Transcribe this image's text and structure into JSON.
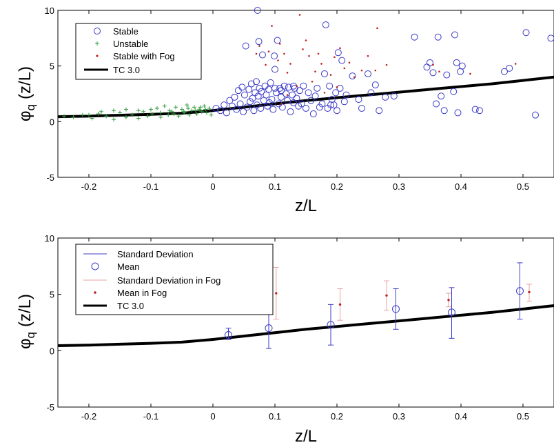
{
  "chart_data": [
    {
      "type": "scatter",
      "xlabel": "z/L",
      "ylabel": "φq (z/L)",
      "ylabel_main": "φ",
      "ylabel_sub": "q",
      "ylabel_rest": "(z/L)",
      "xlim": [
        -0.25,
        0.55
      ],
      "ylim": [
        -5,
        10
      ],
      "xticks": [
        -0.2,
        -0.1,
        0,
        0.1,
        0.2,
        0.3,
        0.4,
        0.5
      ],
      "xtick_labels": [
        "-0.2",
        "-0.1",
        "0",
        "0.1",
        "0.2",
        "0.3",
        "0.4",
        "0.5"
      ],
      "yticks": [
        -5,
        0,
        5,
        10
      ],
      "ytick_labels": [
        "-5",
        "0",
        "5",
        "10"
      ],
      "grid": false,
      "legend_position": "top-left",
      "legend": [
        {
          "label": "Stable",
          "marker": "circle",
          "color": "#3a3ac8"
        },
        {
          "label": "Unstable",
          "marker": "plus",
          "color": "#2e9a3a"
        },
        {
          "label": "Stable with Fog",
          "marker": "dot",
          "color": "#c02020"
        },
        {
          "label": "TC 3.0",
          "marker": "line",
          "color": "#000000"
        }
      ],
      "series": [
        {
          "name": "Stable",
          "marker": "circle",
          "color": "#3a3ac8",
          "points": [
            [
              0.005,
              1.2
            ],
            [
              0.012,
              1.0
            ],
            [
              0.018,
              1.5
            ],
            [
              0.022,
              0.8
            ],
            [
              0.027,
              1.9
            ],
            [
              0.031,
              1.4
            ],
            [
              0.035,
              2.2
            ],
            [
              0.038,
              1.1
            ],
            [
              0.041,
              2.8
            ],
            [
              0.044,
              1.6
            ],
            [
              0.047,
              3.1
            ],
            [
              0.049,
              0.9
            ],
            [
              0.051,
              2.4
            ],
            [
              0.053,
              6.8
            ],
            [
              0.055,
              1.3
            ],
            [
              0.058,
              2.9
            ],
            [
              0.06,
              1.8
            ],
            [
              0.062,
              3.4
            ],
            [
              0.064,
              2.1
            ],
            [
              0.066,
              1.0
            ],
            [
              0.068,
              2.6
            ],
            [
              0.07,
              3.6
            ],
            [
              0.071,
              1.5
            ],
            [
              0.072,
              10.0
            ],
            [
              0.073,
              2.3
            ],
            [
              0.074,
              7.2
            ],
            [
              0.075,
              3.0
            ],
            [
              0.077,
              1.2
            ],
            [
              0.078,
              2.7
            ],
            [
              0.08,
              6.0
            ],
            [
              0.082,
              1.9
            ],
            [
              0.084,
              3.2
            ],
            [
              0.086,
              2.4
            ],
            [
              0.088,
              1.4
            ],
            [
              0.09,
              2.9
            ],
            [
              0.091,
              1.7
            ],
            [
              0.093,
              3.5
            ],
            [
              0.095,
              2.0
            ],
            [
              0.097,
              1.1
            ],
            [
              0.099,
              5.9
            ],
            [
              0.1,
              4.7
            ],
            [
              0.102,
              2.6
            ],
            [
              0.104,
              7.3
            ],
            [
              0.106,
              1.6
            ],
            [
              0.108,
              3.0
            ],
            [
              0.11,
              2.2
            ],
            [
              0.112,
              1.3
            ],
            [
              0.115,
              3.2
            ],
            [
              0.118,
              2.5
            ],
            [
              0.12,
              1.9
            ],
            [
              0.122,
              3.1
            ],
            [
              0.125,
              0.9
            ],
            [
              0.128,
              2.4
            ],
            [
              0.13,
              1.7
            ],
            [
              0.132,
              3.0
            ],
            [
              0.135,
              2.1
            ],
            [
              0.138,
              1.4
            ],
            [
              0.14,
              2.8
            ],
            [
              0.143,
              1.6
            ],
            [
              0.146,
              3.2
            ],
            [
              0.15,
              1.2
            ],
            [
              0.154,
              2.6
            ],
            [
              0.158,
              1.9
            ],
            [
              0.162,
              0.7
            ],
            [
              0.165,
              2.3
            ],
            [
              0.168,
              3.0
            ],
            [
              0.172,
              1.3
            ],
            [
              0.176,
              1.6
            ],
            [
              0.18,
              4.3
            ],
            [
              0.182,
              8.7
            ],
            [
              0.185,
              1.2
            ],
            [
              0.188,
              3.2
            ],
            [
              0.192,
              2.0
            ],
            [
              0.195,
              1.5
            ],
            [
              0.198,
              2.6
            ],
            [
              0.202,
              6.2
            ],
            [
              0.205,
              3.0
            ],
            [
              0.208,
              5.5
            ],
            [
              0.212,
              1.8
            ],
            [
              0.215,
              2.4
            ],
            [
              0.225,
              4.1
            ],
            [
              0.235,
              2.0
            ],
            [
              0.24,
              1.2
            ],
            [
              0.25,
              4.3
            ],
            [
              0.255,
              2.6
            ],
            [
              0.262,
              3.3
            ],
            [
              0.268,
              1.0
            ],
            [
              0.278,
              2.2
            ],
            [
              0.292,
              2.3
            ],
            [
              0.325,
              7.6
            ],
            [
              0.345,
              4.9
            ],
            [
              0.35,
              5.3
            ],
            [
              0.355,
              4.4
            ],
            [
              0.36,
              1.6
            ],
            [
              0.363,
              7.6
            ],
            [
              0.368,
              2.3
            ],
            [
              0.373,
              1.0
            ],
            [
              0.377,
              4.2
            ],
            [
              0.388,
              2.7
            ],
            [
              0.39,
              7.8
            ],
            [
              0.393,
              5.3
            ],
            [
              0.395,
              0.8
            ],
            [
              0.399,
              4.5
            ],
            [
              0.402,
              5.0
            ],
            [
              0.423,
              1.1
            ],
            [
              0.43,
              1.0
            ],
            [
              0.47,
              4.5
            ],
            [
              0.478,
              4.8
            ],
            [
              0.505,
              8.0
            ],
            [
              0.52,
              0.6
            ],
            [
              0.545,
              7.5
            ],
            [
              0.1,
              3.0
            ],
            [
              0.11,
              2.8
            ],
            [
              0.13,
              3.2
            ],
            [
              0.2,
              1.0
            ],
            [
              0.19,
              1.5
            ]
          ]
        },
        {
          "name": "Unstable",
          "marker": "plus",
          "color": "#2e9a3a",
          "points": [
            [
              -0.24,
              0.5
            ],
            [
              -0.225,
              0.4
            ],
            [
              -0.21,
              0.6
            ],
            [
              -0.195,
              0.3
            ],
            [
              -0.185,
              0.7
            ],
            [
              -0.172,
              0.5
            ],
            [
              -0.16,
              0.2
            ],
            [
              -0.15,
              0.8
            ],
            [
              -0.14,
              0.4
            ],
            [
              -0.13,
              0.6
            ],
            [
              -0.12,
              0.3
            ],
            [
              -0.112,
              0.9
            ],
            [
              -0.105,
              0.5
            ],
            [
              -0.098,
              0.7
            ],
            [
              -0.09,
              1.2
            ],
            [
              -0.084,
              0.4
            ],
            [
              -0.078,
              1.4
            ],
            [
              -0.072,
              0.6
            ],
            [
              -0.066,
              0.9
            ],
            [
              -0.06,
              1.3
            ],
            [
              -0.055,
              0.5
            ],
            [
              -0.05,
              1.1
            ],
            [
              -0.046,
              0.8
            ],
            [
              -0.042,
              1.5
            ],
            [
              -0.038,
              0.6
            ],
            [
              -0.034,
              1.0
            ],
            [
              -0.03,
              1.3
            ],
            [
              -0.026,
              0.7
            ],
            [
              -0.022,
              1.1
            ],
            [
              -0.018,
              0.9
            ],
            [
              -0.014,
              1.4
            ],
            [
              -0.01,
              0.8
            ],
            [
              -0.006,
              1.2
            ],
            [
              -0.003,
              0.6
            ],
            [
              -0.14,
              1.1
            ],
            [
              -0.16,
              1.0
            ],
            [
              -0.18,
              0.9
            ],
            [
              -0.12,
              1.0
            ],
            [
              -0.1,
              1.1
            ],
            [
              -0.07,
              1.0
            ],
            [
              -0.04,
              1.2
            ],
            [
              -0.02,
              1.3
            ],
            [
              -0.085,
              0.8
            ],
            [
              -0.063,
              0.7
            ],
            [
              -0.047,
              0.9
            ],
            [
              -0.028,
              1.0
            ],
            [
              -0.012,
              1.1
            ],
            [
              -0.2,
              0.6
            ]
          ]
        },
        {
          "name": "Stable with Fog",
          "marker": "dot",
          "color": "#c02020",
          "points": [
            [
              0.07,
              6.1
            ],
            [
              0.075,
              6.8
            ],
            [
              0.085,
              5.1
            ],
            [
              0.09,
              6.3
            ],
            [
              0.095,
              8.6
            ],
            [
              0.105,
              5.5
            ],
            [
              0.108,
              7.0
            ],
            [
              0.115,
              6.1
            ],
            [
              0.12,
              4.4
            ],
            [
              0.125,
              5.2
            ],
            [
              0.135,
              3.2
            ],
            [
              0.14,
              9.6
            ],
            [
              0.145,
              6.5
            ],
            [
              0.15,
              7.3
            ],
            [
              0.155,
              5.9
            ],
            [
              0.16,
              3.6
            ],
            [
              0.165,
              4.5
            ],
            [
              0.17,
              6.1
            ],
            [
              0.175,
              5.2
            ],
            [
              0.18,
              2.6
            ],
            [
              0.19,
              4.2
            ],
            [
              0.196,
              5.8
            ],
            [
              0.2,
              3.1
            ],
            [
              0.205,
              6.6
            ],
            [
              0.212,
              4.8
            ],
            [
              0.22,
              5.3
            ],
            [
              0.228,
              4.0
            ],
            [
              0.24,
              4.6
            ],
            [
              0.25,
              5.9
            ],
            [
              0.262,
              4.6
            ],
            [
              0.265,
              8.4
            ],
            [
              0.28,
              5.1
            ],
            [
              0.355,
              5.1
            ],
            [
              0.365,
              4.5
            ],
            [
              0.415,
              4.3
            ],
            [
              0.488,
              5.2
            ],
            [
              0.12,
              2.4
            ],
            [
              0.11,
              1.6
            ]
          ]
        }
      ],
      "fit_line": {
        "name": "TC 3.0",
        "x": [
          -0.25,
          -0.2,
          -0.15,
          -0.1,
          -0.05,
          0,
          0.05,
          0.1,
          0.15,
          0.2,
          0.25,
          0.3,
          0.35,
          0.4,
          0.45,
          0.5,
          0.55
        ],
        "y": [
          0.45,
          0.5,
          0.58,
          0.66,
          0.76,
          1.0,
          1.3,
          1.6,
          1.9,
          2.15,
          2.4,
          2.65,
          2.9,
          3.15,
          3.4,
          3.7,
          4.0
        ]
      }
    },
    {
      "type": "scatter",
      "xlabel": "z/L",
      "ylabel": "φq (z/L)",
      "ylabel_main": "φ",
      "ylabel_sub": "q",
      "ylabel_rest": "(z/L)",
      "xlim": [
        -0.25,
        0.55
      ],
      "ylim": [
        -5,
        10
      ],
      "xticks": [
        -0.2,
        -0.1,
        0,
        0.1,
        0.2,
        0.3,
        0.4,
        0.5
      ],
      "xtick_labels": [
        "-0.2",
        "-0.1",
        "0",
        "0.1",
        "0.2",
        "0.3",
        "0.4",
        "0.5"
      ],
      "yticks": [
        -5,
        0,
        5,
        10
      ],
      "ytick_labels": [
        "-5",
        "0",
        "5",
        "10"
      ],
      "grid": false,
      "legend_position": "top-left",
      "legend": [
        {
          "label": "Standard Deviation",
          "marker": "line",
          "color": "#3a3ac8"
        },
        {
          "label": "Mean",
          "marker": "circle",
          "color": "#3a3ac8"
        },
        {
          "label": "Standard Deviation in Fog",
          "marker": "line",
          "color": "#e8a0a0"
        },
        {
          "label": "Mean in Fog",
          "marker": "dot",
          "color": "#c02020"
        },
        {
          "label": "TC 3.0",
          "marker": "line",
          "color": "#000000"
        }
      ],
      "series": [
        {
          "name": "Mean",
          "color": "#3a3ac8",
          "x": [
            0.025,
            0.09,
            0.19,
            0.295,
            0.385,
            0.495
          ],
          "y": [
            1.4,
            2.0,
            2.3,
            3.7,
            3.4,
            5.3
          ],
          "err_low": [
            1.0,
            0.2,
            0.5,
            1.9,
            1.1,
            2.8
          ],
          "err_high": [
            2.0,
            3.8,
            4.1,
            5.5,
            5.6,
            7.8
          ]
        },
        {
          "name": "Mean in Fog",
          "color": "#c02020",
          "x": [
            0.102,
            0.205,
            0.28,
            0.38,
            0.51
          ],
          "y": [
            5.1,
            4.1,
            4.9,
            4.5,
            5.2
          ],
          "err_low": [
            2.8,
            2.7,
            3.6,
            3.9,
            4.4
          ],
          "err_high": [
            7.4,
            5.5,
            6.2,
            5.1,
            5.9
          ]
        }
      ],
      "fit_line": {
        "name": "TC 3.0",
        "x": [
          -0.25,
          -0.2,
          -0.15,
          -0.1,
          -0.05,
          0,
          0.05,
          0.1,
          0.15,
          0.2,
          0.25,
          0.3,
          0.35,
          0.4,
          0.45,
          0.5,
          0.55
        ],
        "y": [
          0.45,
          0.5,
          0.58,
          0.66,
          0.76,
          1.0,
          1.3,
          1.6,
          1.9,
          2.15,
          2.4,
          2.65,
          2.9,
          3.15,
          3.4,
          3.7,
          4.0
        ]
      }
    }
  ]
}
